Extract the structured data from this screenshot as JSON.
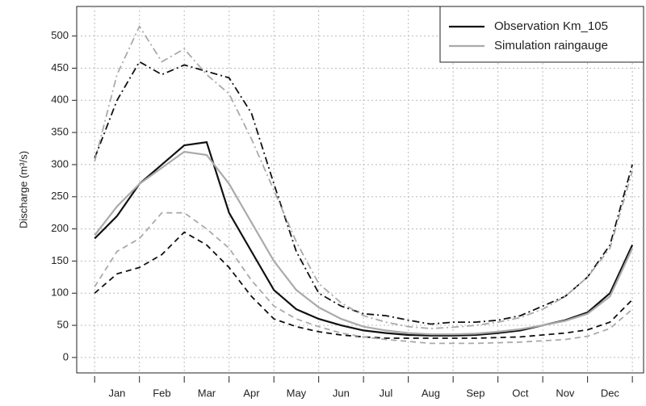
{
  "chart_data": {
    "type": "line",
    "y_label": "Discharge (m³/s)",
    "x": [
      0,
      0.5,
      1,
      1.5,
      2,
      2.5,
      3,
      3.5,
      4,
      4.5,
      5,
      5.5,
      6,
      6.5,
      7,
      7.5,
      8,
      8.5,
      9,
      9.5,
      10,
      10.5,
      11,
      11.5,
      12
    ],
    "xlim": [
      -0.4,
      12.25
    ],
    "xticks": [
      {
        "value": 0.5,
        "label": "Jan"
      },
      {
        "value": 1.5,
        "label": "Feb"
      },
      {
        "value": 2.5,
        "label": "Mar"
      },
      {
        "value": 3.5,
        "label": "Apr"
      },
      {
        "value": 4.5,
        "label": "May"
      },
      {
        "value": 5.5,
        "label": "Jun"
      },
      {
        "value": 6.5,
        "label": "Jul"
      },
      {
        "value": 7.5,
        "label": "Aug"
      },
      {
        "value": 8.5,
        "label": "Sep"
      },
      {
        "value": 9.5,
        "label": "Oct"
      },
      {
        "value": 10.5,
        "label": "Nov"
      },
      {
        "value": 11.5,
        "label": "Dec"
      }
    ],
    "ylim": [
      -24,
      546
    ],
    "yticks": [
      0,
      50,
      100,
      150,
      200,
      250,
      300,
      350,
      400,
      450,
      500
    ],
    "grid": true,
    "legend": "top-right",
    "series": [
      {
        "name": "Observation Km_105",
        "color": "#111111",
        "values": [
          185,
          220,
          270,
          300,
          330,
          335,
          225,
          165,
          105,
          75,
          60,
          50,
          42,
          38,
          35,
          34,
          34,
          35,
          38,
          42,
          50,
          58,
          70,
          100,
          175
        ],
        "lower": [
          100,
          130,
          140,
          160,
          195,
          175,
          140,
          95,
          60,
          48,
          40,
          35,
          32,
          30,
          30,
          30,
          30,
          30,
          31,
          32,
          35,
          38,
          43,
          55,
          90
        ],
        "upper": [
          310,
          400,
          460,
          440,
          455,
          445,
          435,
          380,
          270,
          165,
          100,
          80,
          68,
          65,
          58,
          52,
          55,
          55,
          58,
          65,
          80,
          95,
          125,
          175,
          300
        ]
      },
      {
        "name": "Simulation raingauge",
        "color": "#aaaaaa",
        "values": [
          190,
          235,
          270,
          295,
          320,
          315,
          270,
          210,
          150,
          105,
          78,
          60,
          48,
          42,
          38,
          36,
          36,
          37,
          40,
          44,
          50,
          57,
          68,
          95,
          170
        ],
        "lower": [
          110,
          165,
          185,
          225,
          225,
          200,
          170,
          120,
          80,
          60,
          48,
          38,
          32,
          28,
          25,
          22,
          22,
          22,
          23,
          24,
          26,
          28,
          33,
          45,
          75
        ],
        "upper": [
          305,
          440,
          515,
          460,
          480,
          440,
          410,
          340,
          260,
          180,
          115,
          85,
          65,
          55,
          48,
          45,
          47,
          50,
          55,
          62,
          75,
          95,
          125,
          170,
          290
        ]
      }
    ]
  }
}
